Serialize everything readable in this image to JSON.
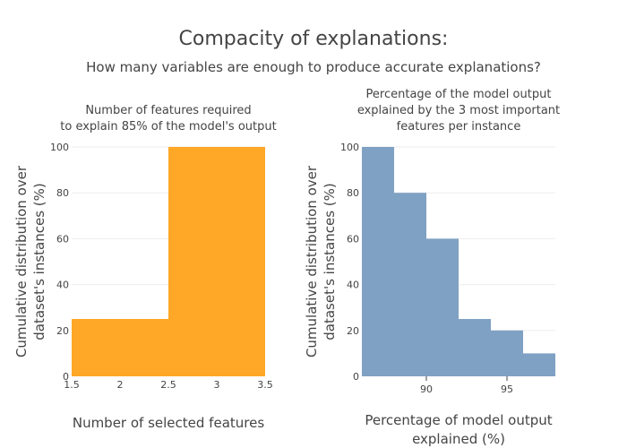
{
  "title": "Compacity of explanations:",
  "subtitle": "How many variables are enough to produce accurate explanations?",
  "chart_data": [
    {
      "type": "bar",
      "title_lines": [
        "Number of features required",
        "to explain 85% of the model's output"
      ],
      "xlabel_lines": [
        "Number of selected features"
      ],
      "ylabel_lines": [
        "Cumulative distribution over",
        "dataset's instances (%)"
      ],
      "color": "#FFA726",
      "xlim": [
        1.5,
        3.5
      ],
      "ylim": [
        0,
        100
      ],
      "xticks": [
        1.5,
        2,
        2.5,
        3,
        3.5
      ],
      "xtick_labels": [
        "1.5",
        "2",
        "2.5",
        "3",
        "3.5"
      ],
      "yticks": [
        0,
        20,
        40,
        60,
        80,
        100
      ],
      "grid": true,
      "bins": [
        {
          "x0": 1.5,
          "x1": 2.5,
          "value": 25
        },
        {
          "x0": 2.5,
          "x1": 3.5,
          "value": 100
        }
      ]
    },
    {
      "type": "bar",
      "title_lines": [
        "Percentage of the model output",
        "explained by the 3 most important",
        "features per instance"
      ],
      "xlabel_lines": [
        "Percentage of model output",
        "explained (%)"
      ],
      "ylabel_lines": [
        "Cumulative distribution over",
        "dataset's instances (%)"
      ],
      "color": "#7FA1C4",
      "xlim": [
        86,
        98
      ],
      "ylim": [
        0,
        100
      ],
      "xticks": [
        90,
        95
      ],
      "xtick_labels": [
        "90",
        "95"
      ],
      "yticks": [
        0,
        20,
        40,
        60,
        80,
        100
      ],
      "grid": true,
      "bins": [
        {
          "x0": 86,
          "x1": 88,
          "value": 100
        },
        {
          "x0": 88,
          "x1": 90,
          "value": 80
        },
        {
          "x0": 90,
          "x1": 92,
          "value": 60
        },
        {
          "x0": 92,
          "x1": 94,
          "value": 25
        },
        {
          "x0": 94,
          "x1": 96,
          "value": 20
        },
        {
          "x0": 96,
          "x1": 98,
          "value": 10
        }
      ]
    }
  ]
}
